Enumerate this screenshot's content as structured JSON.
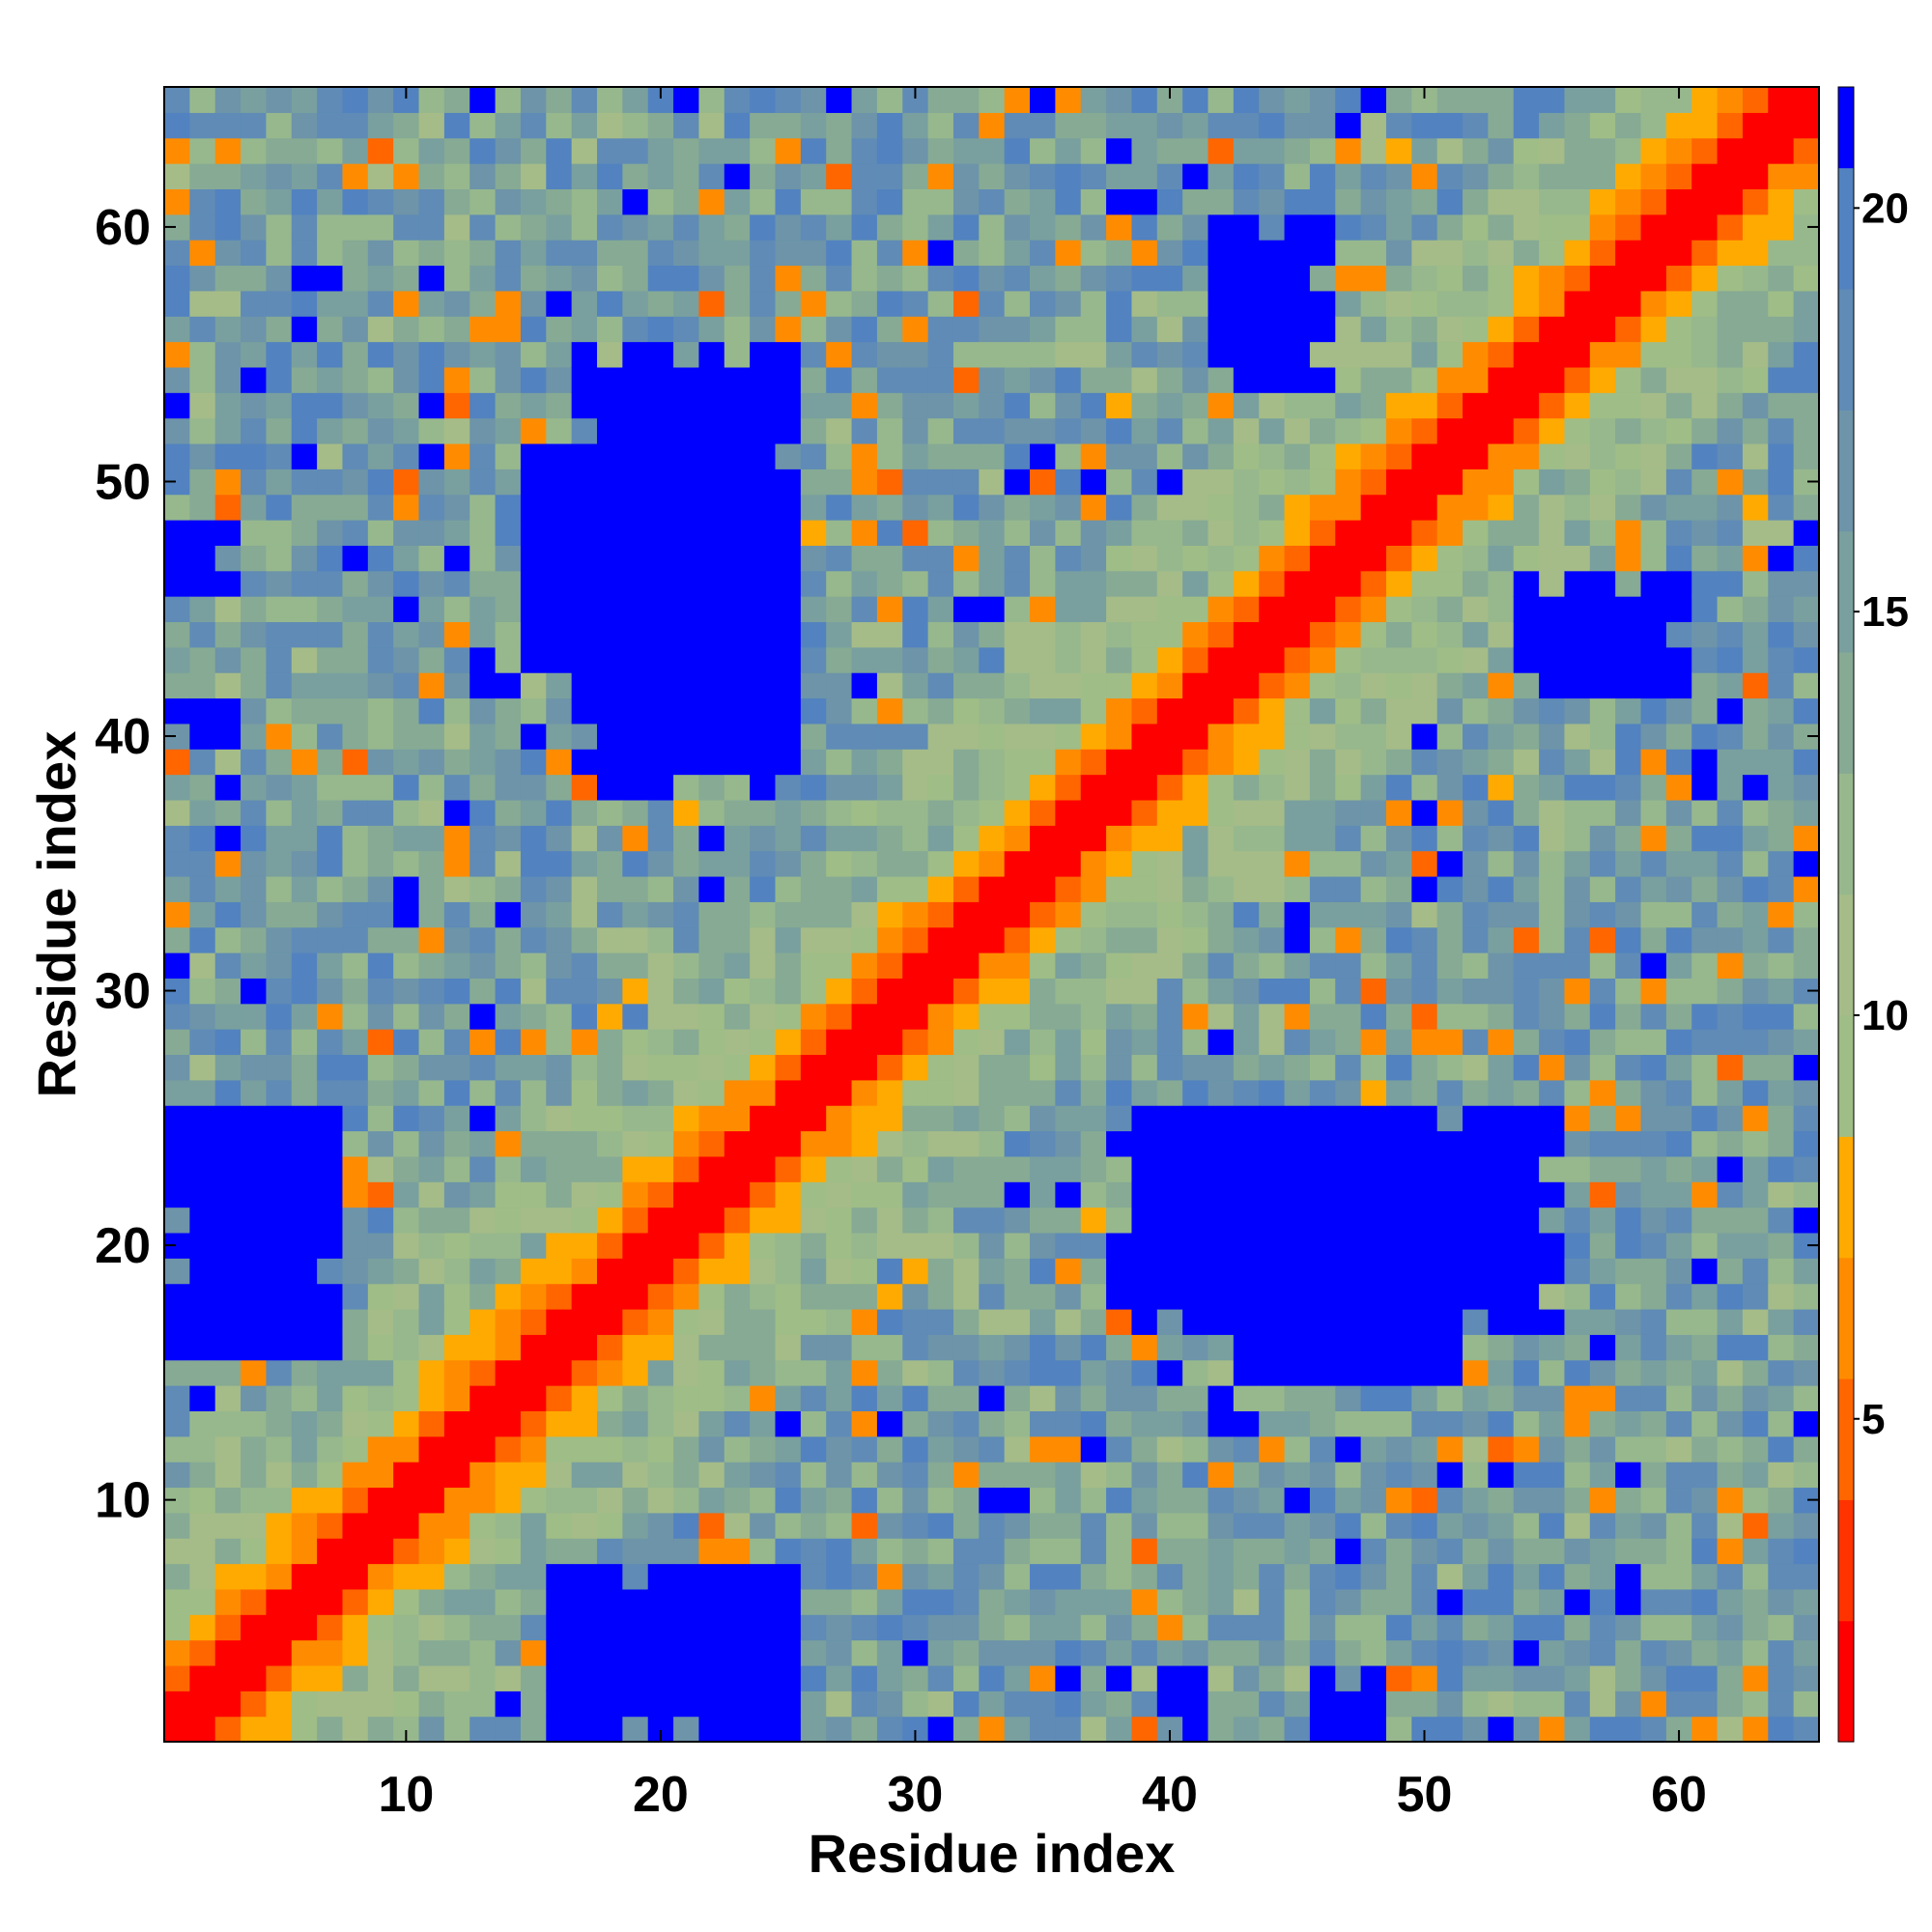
{
  "chart_data": {
    "type": "heatmap",
    "title": "",
    "xlabel": "Residue index",
    "ylabel": "Residue index",
    "n_residues": 65,
    "xlim": [
      0.5,
      65.5
    ],
    "ylim": [
      0.5,
      65.5
    ],
    "x_ticks": [
      "10",
      "20",
      "30",
      "40",
      "50",
      "60"
    ],
    "y_ticks": [
      "10",
      "20",
      "30",
      "40",
      "50",
      "60"
    ],
    "x_tick_values": [
      10,
      20,
      30,
      40,
      50,
      60
    ],
    "y_tick_values": [
      10,
      20,
      30,
      40,
      50,
      60
    ],
    "colorbar": {
      "ticks": [
        "5",
        "10",
        "15",
        "20"
      ],
      "tick_values": [
        5,
        10,
        15,
        20
      ],
      "range": [
        1,
        21.5
      ],
      "bands": [
        {
          "from": 1,
          "to": 2.5,
          "color": "#ff0000"
        },
        {
          "from": 2.5,
          "to": 4,
          "color": "#ff3300"
        },
        {
          "from": 4,
          "to": 5.5,
          "color": "#ff6600"
        },
        {
          "from": 5.5,
          "to": 7,
          "color": "#ff8c00"
        },
        {
          "from": 7,
          "to": 8.5,
          "color": "#ffaa00"
        },
        {
          "from": 8.5,
          "to": 10,
          "color": "#9fbd86"
        },
        {
          "from": 10,
          "to": 11.5,
          "color": "#a5bc88"
        },
        {
          "from": 11.5,
          "to": 13,
          "color": "#97b88d"
        },
        {
          "from": 13,
          "to": 14.5,
          "color": "#86aa94"
        },
        {
          "from": 14.5,
          "to": 16,
          "color": "#79a09e"
        },
        {
          "from": 16,
          "to": 17.5,
          "color": "#6d94a9"
        },
        {
          "from": 17.5,
          "to": 19,
          "color": "#5f8bb6"
        },
        {
          "from": 19,
          "to": 20.5,
          "color": "#5282c0"
        },
        {
          "from": 20.5,
          "to": 21.5,
          "color": "#0000ff"
        }
      ]
    },
    "blue_regions": [
      {
        "i": [
          17,
          25
        ],
        "j": [
          38,
          55
        ],
        "value": 21
      },
      {
        "i": [
          15,
          23
        ],
        "j": [
          43,
          51
        ],
        "value": 21
      },
      {
        "i": [
          40,
          54
        ],
        "j": [
          18,
          25
        ],
        "value": 21
      },
      {
        "i": [
          43,
          51
        ],
        "j": [
          15,
          23
        ],
        "value": 21
      },
      {
        "i": [
          1,
          7
        ],
        "j": [
          16,
          25
        ],
        "value": 21
      },
      {
        "i": [
          16,
          25
        ],
        "j": [
          1,
          7
        ],
        "value": 21
      },
      {
        "i": [
          18,
          25
        ],
        "j": [
          1,
          7
        ],
        "value": 21
      },
      {
        "i": [
          1,
          7
        ],
        "j": [
          18,
          25
        ],
        "value": 21
      },
      {
        "i": [
          46,
          48
        ],
        "j": [
          1,
          3
        ],
        "value": 21
      },
      {
        "i": [
          1,
          3
        ],
        "j": [
          46,
          48
        ],
        "value": 21
      },
      {
        "i": [
          1,
          3
        ],
        "j": [
          40,
          41
        ],
        "value": 21
      },
      {
        "i": [
          42,
          46
        ],
        "j": [
          54,
          60
        ],
        "value": 21
      },
      {
        "i": [
          54,
          60
        ],
        "j": [
          42,
          46
        ],
        "value": 21
      }
    ]
  }
}
